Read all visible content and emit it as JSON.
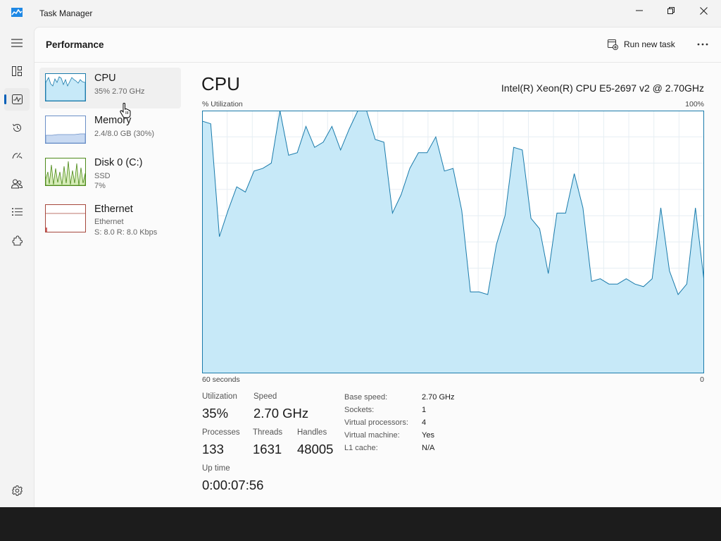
{
  "window": {
    "title": "Task Manager"
  },
  "header": {
    "title": "Performance",
    "run_task_label": "Run new task"
  },
  "sidebar": {
    "items": [
      {
        "title": "CPU",
        "sub1": "35%  2.70 GHz"
      },
      {
        "title": "Memory",
        "sub1": "2.4/8.0 GB (30%)"
      },
      {
        "title": "Disk 0 (C:)",
        "sub1": "SSD",
        "sub2": "7%"
      },
      {
        "title": "Ethernet",
        "sub1": "Ethernet",
        "sub2": "S: 8.0  R: 8.0 Kbps"
      }
    ]
  },
  "main": {
    "title": "CPU",
    "cpu_name": "Intel(R) Xeon(R) CPU E5-2697 v2 @ 2.70GHz",
    "graph": {
      "y_label": "% Utilization",
      "y_max_label": "100%",
      "x_left_label": "60 seconds",
      "x_right_label": "0",
      "fill_color": "#c7e9f8",
      "line_color": "#1a7bab",
      "values": [
        96,
        95,
        52,
        62,
        71,
        69,
        77,
        78,
        80,
        100,
        83,
        84,
        94,
        86,
        88,
        94,
        85,
        93,
        100,
        100,
        89,
        88,
        61,
        68,
        78,
        84,
        84,
        90,
        77,
        78,
        62,
        31,
        31,
        30,
        49,
        60,
        86,
        85,
        59,
        55,
        38,
        61,
        61,
        76,
        63,
        35,
        36,
        34,
        34,
        36,
        34,
        33,
        36,
        63,
        39,
        30,
        34,
        63,
        35
      ]
    },
    "stats": {
      "utilization": {
        "label": "Utilization",
        "value": "35%"
      },
      "speed": {
        "label": "Speed",
        "value": "2.70 GHz"
      },
      "processes": {
        "label": "Processes",
        "value": "133"
      },
      "threads": {
        "label": "Threads",
        "value": "1631"
      },
      "handles": {
        "label": "Handles",
        "value": "48005"
      },
      "uptime": {
        "label": "Up time",
        "value": "0:00:07:56"
      }
    },
    "specs": [
      {
        "label": "Base speed:",
        "value": "2.70 GHz"
      },
      {
        "label": "Sockets:",
        "value": "1"
      },
      {
        "label": "Virtual processors:",
        "value": "4"
      },
      {
        "label": "Virtual machine:",
        "value": "Yes"
      },
      {
        "label": "L1 cache:",
        "value": "N/A"
      }
    ]
  }
}
